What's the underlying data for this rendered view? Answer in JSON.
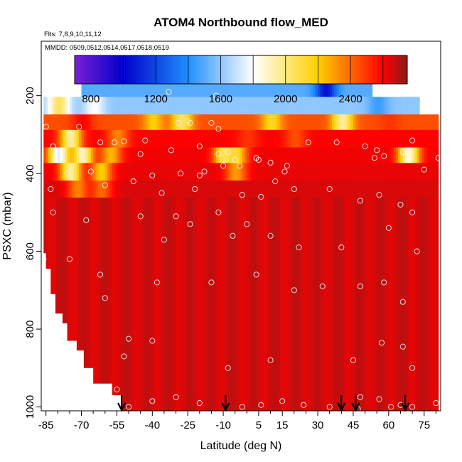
{
  "chart_data": {
    "type": "heatmap",
    "title": "ATOM4 Northbound flow_MED",
    "subtitle_flights": "Flts: 7,8,9,10,11,12",
    "subtitle_dates": "MMDD: 0509,0512,0514,0517,0518,0519",
    "xlabel": "Latitude (deg N)",
    "ylabel": "PSXC (mbar)",
    "xlim": [
      -87,
      82
    ],
    "ylim": [
      1010,
      60
    ],
    "x_ticks": [
      -85,
      -70,
      -55,
      -40,
      -25,
      -10,
      5,
      15,
      30,
      45,
      60,
      75
    ],
    "y_ticks": [
      200,
      400,
      600,
      800,
      1000
    ],
    "colorbar": {
      "range": [
        700,
        2750
      ],
      "ticks": [
        800,
        1200,
        1600,
        2000,
        2400
      ],
      "boundaries": [
        700,
        1000,
        1400,
        1800,
        2200,
        2600,
        2750
      ],
      "colors": [
        "#7a1fd6",
        "#0000c8",
        "#1f8fff",
        "#ffffff",
        "#ffd000",
        "#ff0000",
        "#8b1a1a"
      ]
    },
    "default_value": 2660,
    "column_bottoms": [
      {
        "lat": -86,
        "p": 605
      },
      {
        "lat": -85,
        "p": 645
      },
      {
        "lat": -83,
        "p": 710
      },
      {
        "lat": -81,
        "p": 760
      },
      {
        "lat": -78,
        "p": 785
      },
      {
        "lat": -76,
        "p": 830
      },
      {
        "lat": -72,
        "p": 855
      },
      {
        "lat": -69,
        "p": 900
      },
      {
        "lat": -65,
        "p": 940
      },
      {
        "lat": -57,
        "p": 970
      },
      {
        "lat": -53,
        "p": 1010
      }
    ],
    "top_rows": [
      {
        "p": 175,
        "lat_min": -70,
        "lat_max": 52,
        "base": 1500,
        "lows": [
          [
            33,
            1050
          ]
        ]
      },
      {
        "p": 225,
        "lat_min": -86,
        "lat_max": 72,
        "base": 1600,
        "lows": [
          [
            -80,
            2050
          ],
          [
            -65,
            1800
          ],
          [
            55,
            1450
          ]
        ]
      },
      {
        "p": 270,
        "lat_min": -86,
        "lat_max": 80,
        "base": 2450,
        "lows": [
          [
            -70,
            2600
          ],
          [
            -28,
            2050
          ],
          [
            -40,
            2200
          ],
          [
            10,
            2150
          ],
          [
            40,
            1950
          ],
          [
            60,
            2500
          ]
        ]
      },
      {
        "p": 310,
        "lat_min": -86,
        "lat_max": 80,
        "base": 2600,
        "lows": [
          [
            -75,
            1950
          ],
          [
            -55,
            2350
          ],
          [
            0,
            2500
          ],
          [
            20,
            2450
          ]
        ]
      },
      {
        "p": 355,
        "lat_min": -86,
        "lat_max": 80,
        "base": 2620,
        "lows": [
          [
            -80,
            1750
          ],
          [
            -70,
            1900
          ],
          [
            -58,
            2250
          ],
          [
            -5,
            2150
          ],
          [
            -10,
            2050
          ],
          [
            68,
            1850
          ]
        ]
      },
      {
        "p": 395,
        "lat_min": -86,
        "lat_max": 80,
        "base": 2630,
        "lows": [
          [
            -75,
            1950
          ],
          [
            -62,
            2200
          ],
          [
            -5,
            2300
          ]
        ]
      },
      {
        "p": 440,
        "lat_min": -86,
        "lat_max": 80,
        "base": 2650,
        "lows": [
          [
            -72,
            2350
          ],
          [
            -62,
            2400
          ]
        ]
      }
    ],
    "observations": [
      [
        -33,
        190
      ],
      [
        -13,
        200
      ],
      [
        -15,
        270
      ],
      [
        -29,
        270
      ],
      [
        -24,
        270
      ],
      [
        -52,
        317
      ],
      [
        -62,
        320
      ],
      [
        -43,
        315
      ],
      [
        -85,
        280
      ],
      [
        -71,
        280
      ],
      [
        -25,
        265
      ],
      [
        -12,
        285
      ],
      [
        -75,
        300
      ],
      [
        -82,
        330
      ],
      [
        -56,
        320
      ],
      [
        -45,
        350
      ],
      [
        -32,
        340
      ],
      [
        -20,
        330
      ],
      [
        -12,
        350
      ],
      [
        -8,
        345
      ],
      [
        4,
        360
      ],
      [
        -3,
        380
      ],
      [
        10,
        372
      ],
      [
        16,
        395
      ],
      [
        17,
        380
      ],
      [
        26,
        320
      ],
      [
        38,
        320
      ],
      [
        50,
        330
      ],
      [
        54,
        360
      ],
      [
        55,
        340
      ],
      [
        58,
        355
      ],
      [
        66,
        345
      ],
      [
        70,
        315
      ],
      [
        75,
        390
      ],
      [
        81,
        360
      ],
      [
        -76,
        400
      ],
      [
        -66,
        395
      ],
      [
        -40,
        405
      ],
      [
        -28,
        400
      ],
      [
        -20,
        405
      ],
      [
        -18,
        395
      ],
      [
        -10,
        380
      ],
      [
        -5,
        365
      ],
      [
        5,
        365
      ],
      [
        -48,
        420
      ],
      [
        -60,
        430
      ],
      [
        -83,
        440
      ],
      [
        -36,
        450
      ],
      [
        -22,
        440
      ],
      [
        -2,
        455
      ],
      [
        6,
        460
      ],
      [
        12,
        420
      ],
      [
        20,
        440
      ],
      [
        35,
        440
      ],
      [
        48,
        470
      ],
      [
        56,
        455
      ],
      [
        65,
        480
      ],
      [
        70,
        500
      ],
      [
        -82,
        500
      ],
      [
        -68,
        520
      ],
      [
        -45,
        510
      ],
      [
        -30,
        510
      ],
      [
        -12,
        500
      ],
      [
        0,
        530
      ],
      [
        -6,
        560
      ],
      [
        10,
        560
      ],
      [
        -35,
        570
      ],
      [
        -24,
        530
      ],
      [
        22,
        590
      ],
      [
        40,
        590
      ],
      [
        60,
        540
      ],
      [
        72,
        600
      ],
      [
        -86,
        620
      ],
      [
        -75,
        620
      ],
      [
        -62,
        660
      ],
      [
        -38,
        680
      ],
      [
        -15,
        680
      ],
      [
        4,
        660
      ],
      [
        20,
        700
      ],
      [
        32,
        690
      ],
      [
        48,
        690
      ],
      [
        58,
        680
      ],
      [
        66,
        730
      ],
      [
        -60,
        720
      ],
      [
        -78,
        830
      ],
      [
        -50,
        825
      ],
      [
        -40,
        830
      ],
      [
        -52,
        870
      ],
      [
        -8,
        900
      ],
      [
        10,
        880
      ],
      [
        45,
        880
      ],
      [
        57,
        835
      ],
      [
        66,
        845
      ],
      [
        70,
        900
      ],
      [
        -55,
        955
      ],
      [
        -40,
        985
      ],
      [
        -30,
        975
      ],
      [
        -20,
        990
      ],
      [
        -2,
        1000
      ],
      [
        6,
        995
      ],
      [
        15,
        985
      ],
      [
        24,
        995
      ],
      [
        35,
        1000
      ],
      [
        48,
        975
      ],
      [
        56,
        980
      ],
      [
        61,
        1000
      ],
      [
        65,
        995
      ],
      [
        70,
        1000
      ],
      [
        80,
        990
      ],
      [
        -50,
        1000
      ],
      [
        47,
        1005
      ]
    ],
    "arrows": [
      -53,
      -9,
      40,
      46,
      67
    ]
  }
}
